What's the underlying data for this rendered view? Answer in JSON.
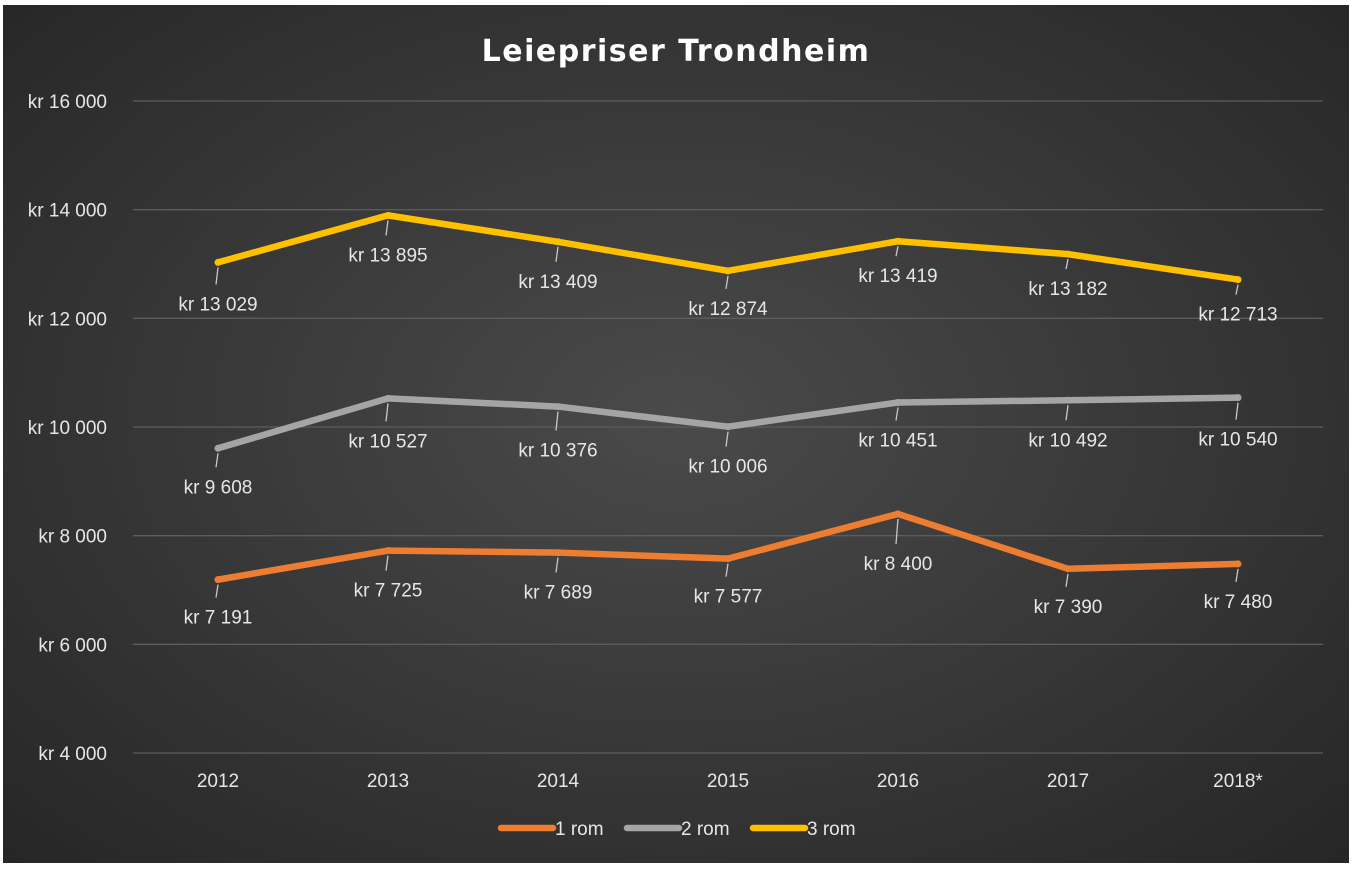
{
  "chart_data": {
    "type": "line",
    "title": "Leiepriser Trondheim",
    "categories": [
      "2012",
      "2013",
      "2014",
      "2015",
      "2016",
      "2017",
      "2018*"
    ],
    "ylim": [
      4000,
      16000
    ],
    "yticks": [
      4000,
      6000,
      8000,
      10000,
      12000,
      14000,
      16000
    ],
    "ytick_labels": [
      "kr 4 000",
      "kr 6 000",
      "kr 8 000",
      "kr 10 000",
      "kr 12 000",
      "kr 14 000",
      "kr 16 000"
    ],
    "grid": true,
    "legend_position": "bottom",
    "series": [
      {
        "name": "1 rom",
        "color": "#ED7D31",
        "values": [
          7191,
          7725,
          7689,
          7577,
          8400,
          7390,
          7480
        ],
        "labels": [
          "kr 7 191",
          "kr 7 725",
          "kr 7 689",
          "kr 7 577",
          "kr 8 400",
          "kr 7 390",
          "kr 7 480"
        ]
      },
      {
        "name": "2 rom",
        "color": "#A5A5A5",
        "values": [
          9608,
          10527,
          10376,
          10006,
          10451,
          10492,
          10540
        ],
        "labels": [
          "kr 9 608",
          "kr 10 527",
          "kr 10 376",
          "kr 10 006",
          "kr 10 451",
          "kr 10 492",
          "kr 10 540"
        ]
      },
      {
        "name": "3 rom",
        "color": "#FFC000",
        "values": [
          13029,
          13895,
          13409,
          12874,
          13419,
          13182,
          12713
        ],
        "labels": [
          "kr 13 029",
          "kr 13 895",
          "kr 13 409",
          "kr 12 874",
          "kr 13 419",
          "kr 13 182",
          "kr 12 713"
        ]
      }
    ]
  }
}
